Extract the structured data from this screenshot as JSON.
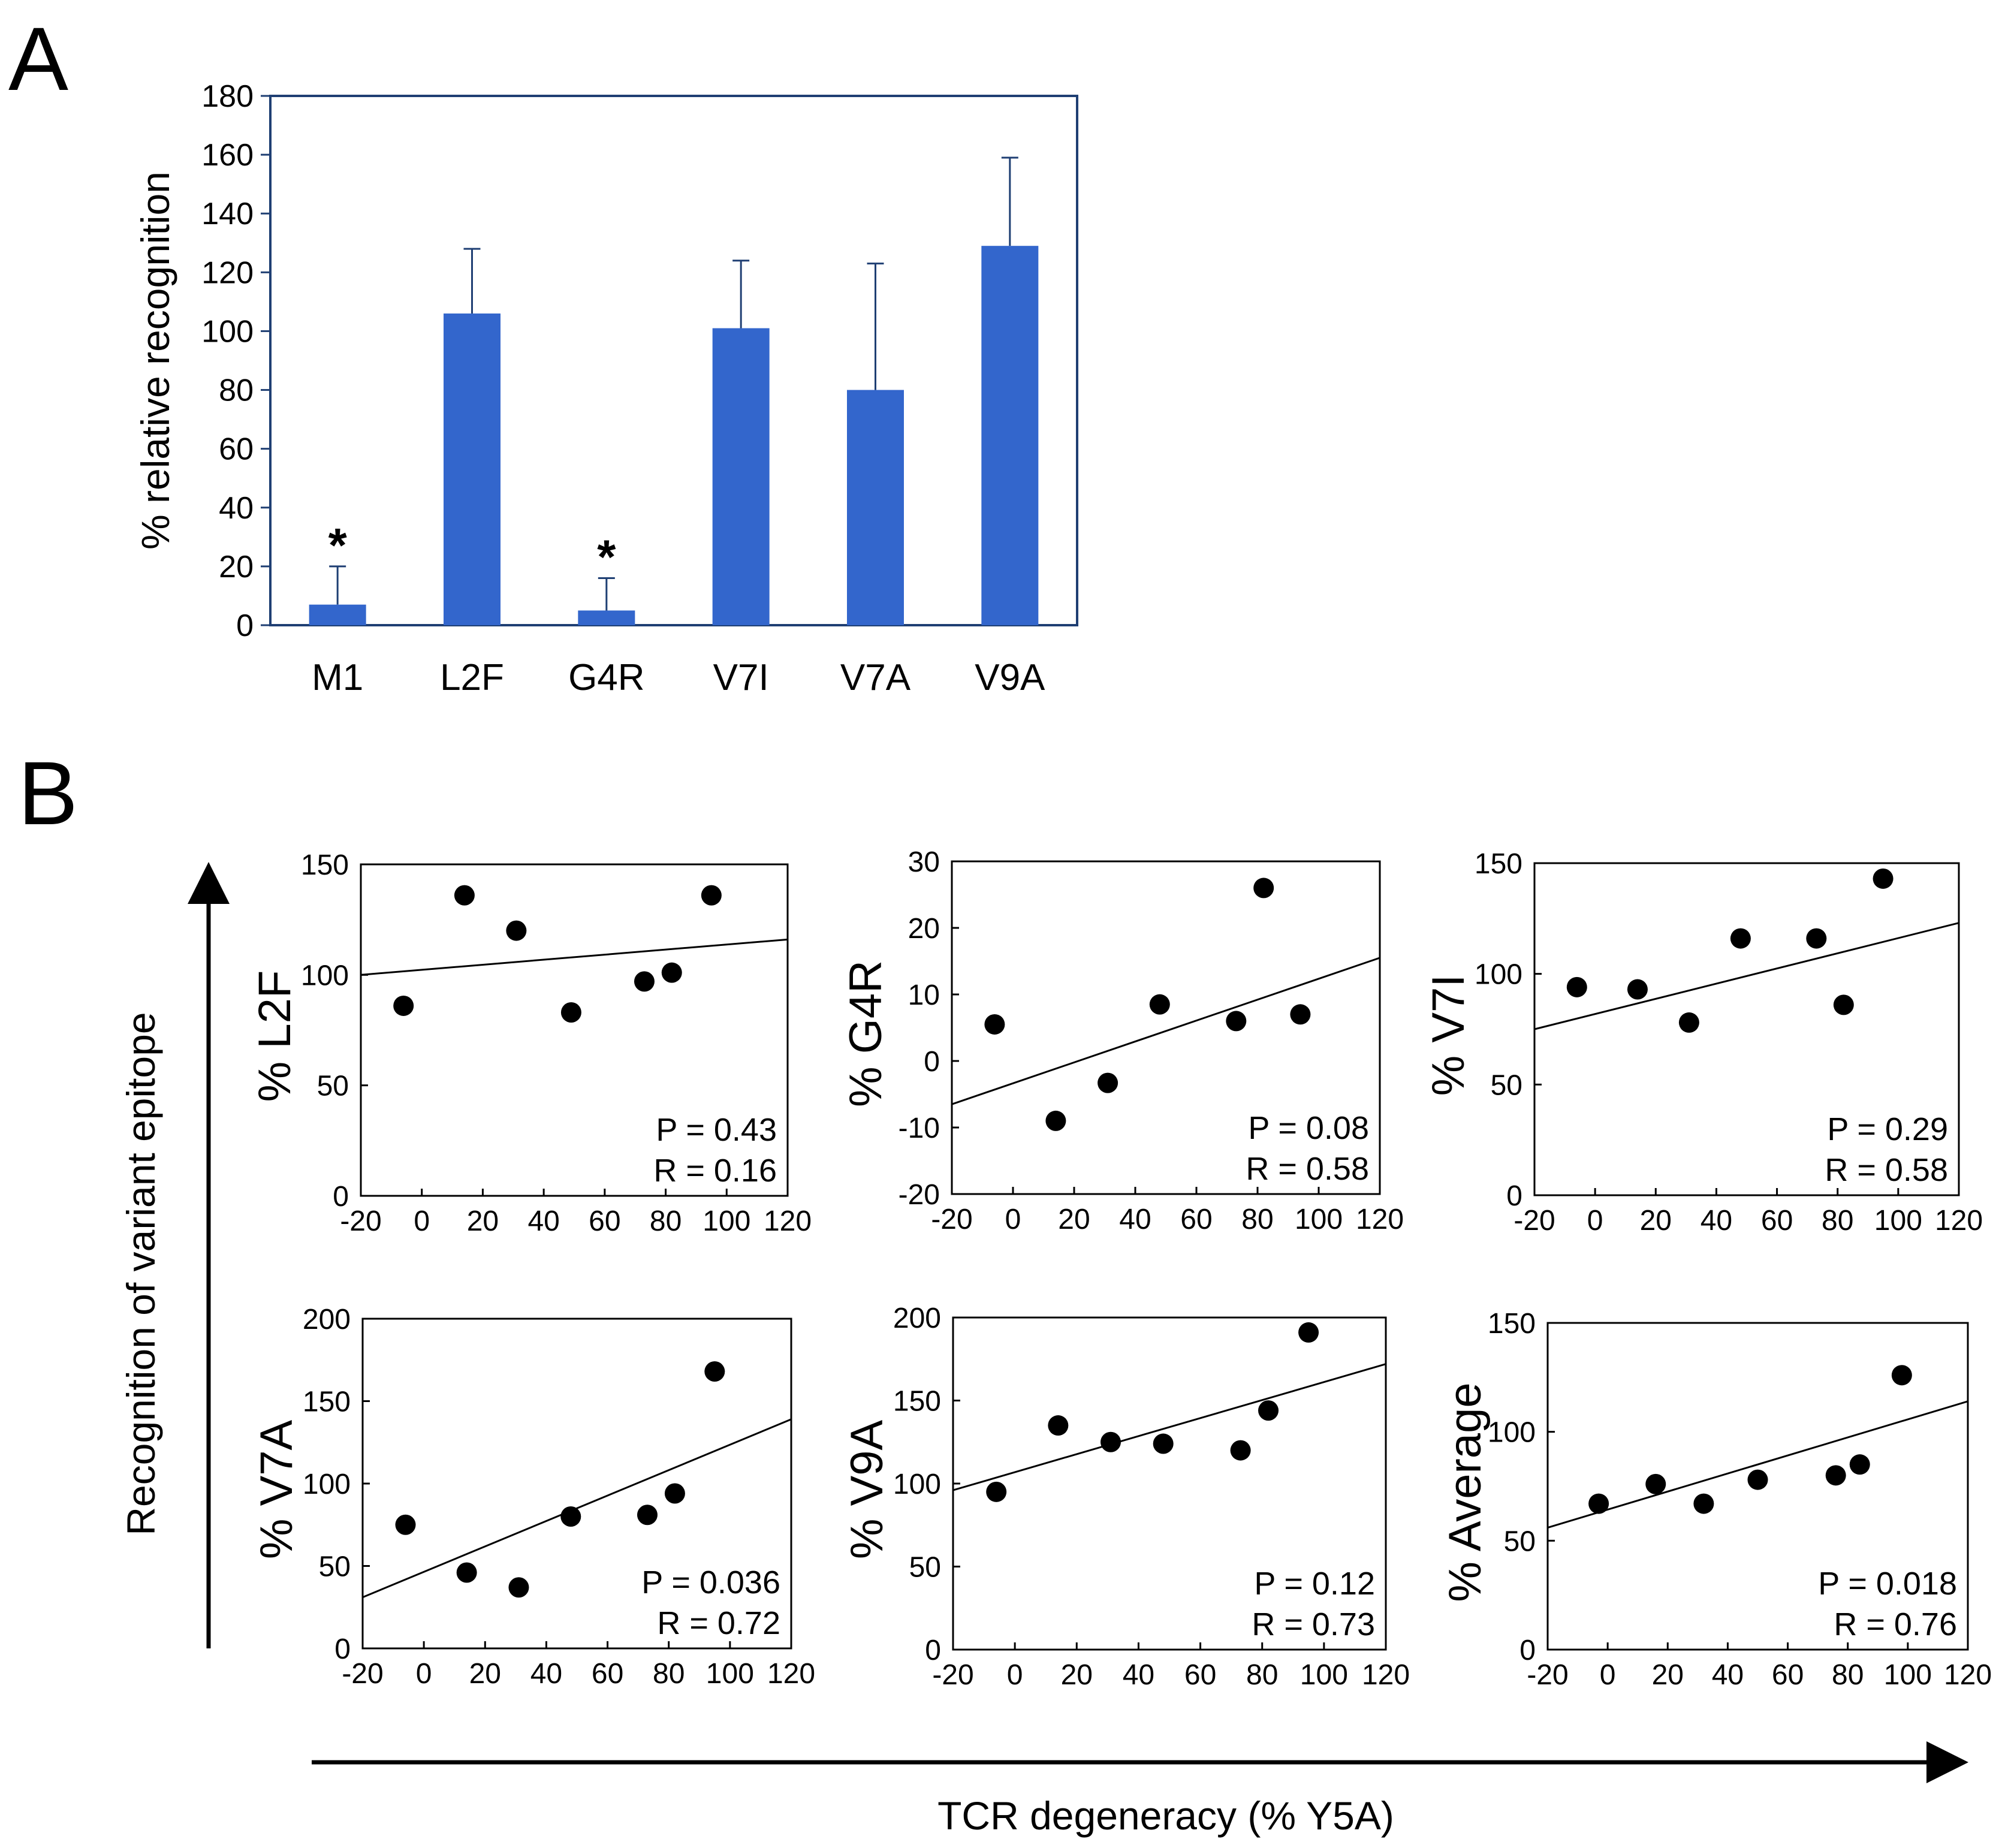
{
  "colors": {
    "bar": "#3366cc",
    "axis_frame": "#1f3f73",
    "ink": "#000000"
  },
  "panel_labels": {
    "a": "A",
    "b": "B"
  },
  "chart_data": [
    {
      "id": "A",
      "type": "bar",
      "title": "",
      "ylabel": "% relative recognition",
      "xlabel": "",
      "categories": [
        "M1",
        "L2F",
        "G4R",
        "V7I",
        "V7A",
        "V9A"
      ],
      "values": [
        7,
        106,
        5,
        101,
        80,
        129
      ],
      "errors": [
        13,
        22,
        11,
        23,
        43,
        30
      ],
      "significance": [
        "*",
        "",
        "*",
        "",
        "",
        ""
      ],
      "ylim": [
        0,
        180
      ],
      "yticks": [
        "0",
        "20",
        "40",
        "60",
        "80",
        "100",
        "120",
        "140",
        "160",
        "180"
      ]
    },
    {
      "id": "B1",
      "type": "scatter",
      "ylabel": "% L2F",
      "x": [
        -6,
        14,
        31,
        49,
        73,
        82,
        95
      ],
      "y": [
        86,
        136,
        120,
        83,
        97,
        101,
        136
      ],
      "fit": [
        [
          -20,
          100
        ],
        [
          120,
          116
        ]
      ],
      "xlim": [
        -20,
        120
      ],
      "ylim": [
        0,
        150
      ],
      "xticks": [
        "-20",
        "0",
        "20",
        "40",
        "60",
        "80",
        "100",
        "120"
      ],
      "yticks": [
        "0",
        "50",
        "100",
        "150"
      ],
      "stats": {
        "p": "P = 0.43",
        "r": "R = 0.16"
      }
    },
    {
      "id": "B2",
      "type": "scatter",
      "ylabel": "% G4R",
      "x": [
        -6,
        14,
        31,
        48,
        73,
        82,
        94
      ],
      "y": [
        5.5,
        -9,
        -3.3,
        8.5,
        6,
        26,
        7
      ],
      "fit": [
        [
          -20,
          -6.5
        ],
        [
          120,
          15.5
        ]
      ],
      "xlim": [
        -20,
        120
      ],
      "ylim": [
        -20,
        30
      ],
      "xticks": [
        "-20",
        "0",
        "20",
        "40",
        "60",
        "80",
        "100",
        "120"
      ],
      "yticks": [
        "-20",
        "-10",
        "0",
        "10",
        "20",
        "30"
      ],
      "stats": {
        "p": "P = 0.08",
        "r": "R = 0.58"
      }
    },
    {
      "id": "B3",
      "type": "scatter",
      "ylabel": "% V7I",
      "x": [
        -6,
        14,
        31,
        48,
        73,
        82,
        95
      ],
      "y": [
        94,
        93,
        78,
        116,
        116,
        86,
        143
      ],
      "fit": [
        [
          -20,
          75
        ],
        [
          120,
          123
        ]
      ],
      "xlim": [
        -20,
        120
      ],
      "ylim": [
        0,
        150
      ],
      "xticks": [
        "-20",
        "0",
        "20",
        "40",
        "60",
        "80",
        "100",
        "120"
      ],
      "yticks": [
        "0",
        "50",
        "100",
        "150"
      ],
      "stats": {
        "p": "P = 0.29",
        "r": "R = 0.58"
      }
    },
    {
      "id": "B4",
      "type": "scatter",
      "ylabel": "% V7A",
      "x": [
        -6,
        14,
        31,
        48,
        73,
        82,
        95
      ],
      "y": [
        75,
        46,
        37,
        80,
        81,
        94,
        168
      ],
      "fit": [
        [
          -20,
          31
        ],
        [
          120,
          139
        ]
      ],
      "xlim": [
        -20,
        120
      ],
      "ylim": [
        0,
        200
      ],
      "xticks": [
        "-20",
        "0",
        "20",
        "40",
        "60",
        "80",
        "100",
        "120"
      ],
      "yticks": [
        "0",
        "50",
        "100",
        "150",
        "200"
      ],
      "stats": {
        "p": "P = 0.036",
        "r": "R = 0.72"
      }
    },
    {
      "id": "B5",
      "type": "scatter",
      "ylabel": "% V9A",
      "x": [
        -6,
        14,
        31,
        48,
        73,
        82,
        95
      ],
      "y": [
        95,
        135,
        125,
        124,
        120,
        144,
        191
      ],
      "fit": [
        [
          -20,
          96
        ],
        [
          120,
          172
        ]
      ],
      "xlim": [
        -20,
        120
      ],
      "ylim": [
        0,
        200
      ],
      "xticks": [
        "-20",
        "0",
        "20",
        "40",
        "60",
        "80",
        "100",
        "120"
      ],
      "yticks": [
        "0",
        "50",
        "100",
        "150",
        "200"
      ],
      "stats": {
        "p": "P = 0.12",
        "r": "R = 0.73"
      }
    },
    {
      "id": "B6",
      "type": "scatter",
      "ylabel": "% Average",
      "x": [
        -3,
        16,
        32,
        50,
        76,
        84,
        98
      ],
      "y": [
        67,
        76,
        67,
        78,
        80,
        85,
        126
      ],
      "fit": [
        [
          -20,
          56
        ],
        [
          120,
          114
        ]
      ],
      "xlim": [
        -20,
        120
      ],
      "ylim": [
        0,
        150
      ],
      "xticks": [
        "-20",
        "0",
        "20",
        "40",
        "60",
        "80",
        "100",
        "120"
      ],
      "yticks": [
        "0",
        "50",
        "100",
        "150"
      ],
      "stats": {
        "p": "P = 0.018",
        "r": "R = 0.76"
      }
    }
  ],
  "panel_b_axes": {
    "ylabel": "Recognition of variant epitope",
    "xlabel": "TCR degeneracy (% Y5A)"
  }
}
